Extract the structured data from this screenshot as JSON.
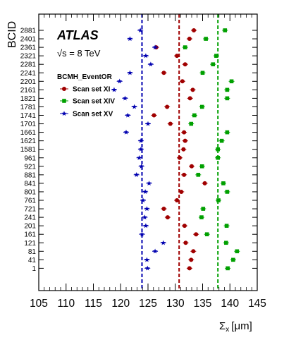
{
  "chart_data": {
    "type": "scatter",
    "experiment": "ATLAS",
    "energy_label": "√s = 8 TeV",
    "legend_title": "BCMH_EventOR",
    "xlabel": "Σ",
    "xlabel_sub": "x",
    "xlabel_unit": "[μm]",
    "ylabel": "BCID",
    "xlim": [
      105,
      145
    ],
    "xticks": [
      105,
      110,
      115,
      120,
      125,
      130,
      135,
      140,
      145
    ],
    "categories": [
      "1",
      "41",
      "81",
      "121",
      "161",
      "201",
      "241",
      "721",
      "761",
      "801",
      "841",
      "881",
      "921",
      "961",
      "1581",
      "1621",
      "1661",
      "1701",
      "1741",
      "1781",
      "1821",
      "2161",
      "2201",
      "2241",
      "2281",
      "2321",
      "2361",
      "2401",
      "2881"
    ],
    "series": [
      {
        "name": "Scan set XI",
        "color": "#a00000",
        "marker": "circle",
        "mean": 130.7,
        "values": [
          132.6,
          132.9,
          133.3,
          131.9,
          133.8,
          131.7,
          128.6,
          127.9,
          130.3,
          131.1,
          135.4,
          131.6,
          133.0,
          130.8,
          131.5,
          131.8,
          131.6,
          129.1,
          126.1,
          128.5,
          132.7,
          133.2,
          131.3,
          127.9,
          131.8,
          130.3,
          126.5,
          132.6,
          133.4
        ]
      },
      {
        "name": "Scan set XIV",
        "color": "#00a000",
        "marker": "square",
        "mean": 137.8,
        "values": [
          139.6,
          140.6,
          141.3,
          139.3,
          135.8,
          139.4,
          134.8,
          135.1,
          137.9,
          139.5,
          138.8,
          134.2,
          134.9,
          137.8,
          137.8,
          138.5,
          139.5,
          132.9,
          133.5,
          134.9,
          139.5,
          139.5,
          140.3,
          135.0,
          136.9,
          137.5,
          131.8,
          135.6,
          139.1
        ]
      },
      {
        "name": "Scan set XV",
        "color": "#0000b0",
        "marker": "star",
        "mean": 123.9,
        "values": [
          124.9,
          124.8,
          126.3,
          127.8,
          123.9,
          124.6,
          124.4,
          124.8,
          124.1,
          124.5,
          125.2,
          122.9,
          123.8,
          123.4,
          123.7,
          123.7,
          121.0,
          125.0,
          121.3,
          122.5,
          120.8,
          118.8,
          119.8,
          121.7,
          125.5,
          124.6,
          126.3,
          121.7,
          123.6
        ]
      }
    ]
  }
}
